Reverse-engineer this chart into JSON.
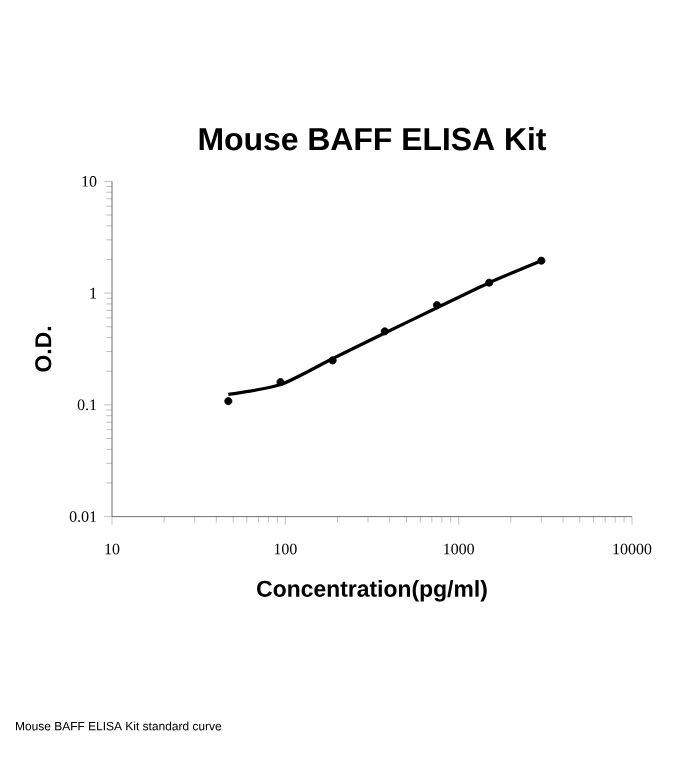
{
  "chart_data": {
    "type": "scatter",
    "title": "Mouse BAFF ELISA Kit",
    "xlabel": "Concentration(pg/ml)",
    "ylabel": "O.D.",
    "log": "xy",
    "xlim": [
      10,
      10000
    ],
    "ylim": [
      0.01,
      10
    ],
    "xticks": [
      10,
      100,
      1000,
      10000
    ],
    "yticks": [
      0.01,
      0.1,
      1,
      10
    ],
    "series": [
      {
        "color": "#000000",
        "marker": "circle",
        "x": [
          46.9,
          93.75,
          187.5,
          375,
          750,
          1500,
          3000
        ],
        "values": [
          0.108,
          0.16,
          0.25,
          0.455,
          0.78,
          1.24,
          1.95
        ]
      },
      {
        "type": "line",
        "color": "#000000",
        "marker": "none",
        "line_style": "solid",
        "x": [
          46.9,
          94,
          188,
          375,
          750,
          1500,
          3000
        ],
        "values": [
          0.124,
          0.152,
          0.26,
          0.44,
          0.74,
          1.24,
          1.95
        ]
      }
    ],
    "annotations": [
      "Mouse BAFF ELISA Kit standard curve"
    ]
  }
}
